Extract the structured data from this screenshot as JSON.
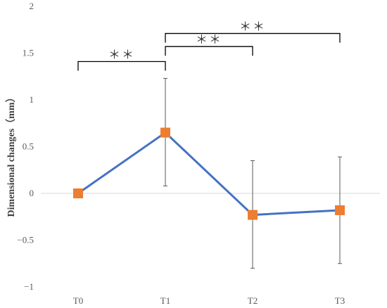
{
  "chart_data": {
    "type": "line",
    "title": "",
    "xlabel": "",
    "ylabel": "Dimensional changes（mm）",
    "categories": [
      "T0",
      "T1",
      "T2",
      "T3"
    ],
    "ylim": [
      -1,
      2
    ],
    "y_ticks": [
      2,
      1.5,
      1,
      0.5,
      0,
      -0.5,
      -1
    ],
    "y_tick_labels": [
      "2",
      "1.5",
      "1",
      "0.5",
      "0",
      "−0.5",
      "−1"
    ],
    "grid": false,
    "legend": "none",
    "series": [
      {
        "values": [
          0,
          0.65,
          -0.23,
          -0.18
        ],
        "error_low": [
          0,
          0.08,
          -0.8,
          -0.75
        ],
        "error_high": [
          0,
          1.23,
          0.35,
          0.39
        ],
        "line_color": "#4472C4",
        "marker_color": "#ED7D31",
        "marker": "square"
      }
    ],
    "significance": [
      {
        "from": "T0",
        "to": "T1",
        "label": "＊＊",
        "y": 1.41
      },
      {
        "from": "T1",
        "to": "T2",
        "label": "＊＊",
        "y": 1.57
      },
      {
        "from": "T1",
        "to": "T3",
        "label": "＊＊",
        "y": 1.71
      }
    ]
  }
}
